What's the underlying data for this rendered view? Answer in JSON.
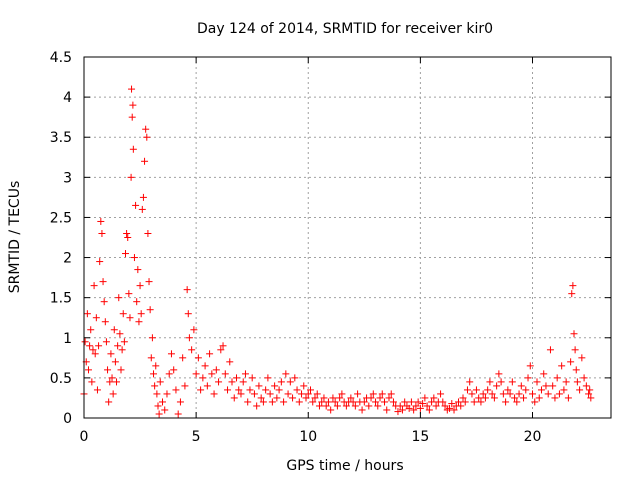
{
  "chart_data": {
    "type": "scatter",
    "title": "Day 124 of 2014, SRMTID for receiver kir0",
    "xlabel": "GPS time / hours",
    "ylabel": "SRMTID / TECUs",
    "xlim": [
      0,
      23.5
    ],
    "ylim": [
      0,
      4.5
    ],
    "grid": true,
    "marker": "+",
    "marker_color": "#ff0000",
    "x_ticks": [
      0,
      5,
      10,
      15,
      20
    ],
    "x_tick_labels": [
      "0",
      "5",
      "10",
      "15",
      "20"
    ],
    "y_ticks": [
      0,
      0.5,
      1,
      1.5,
      2,
      2.5,
      3,
      3.5,
      4,
      4.5
    ],
    "y_tick_labels": [
      "0",
      "0.5",
      "1",
      "1.5",
      "2",
      "2.5",
      "3",
      "3.5",
      "4",
      "4.5"
    ],
    "series": [
      {
        "name": "kir0",
        "points": [
          [
            0.0,
            0.3
          ],
          [
            0.05,
            0.95
          ],
          [
            0.1,
            0.7
          ],
          [
            0.15,
            1.3
          ],
          [
            0.2,
            0.6
          ],
          [
            0.25,
            0.9
          ],
          [
            0.3,
            1.1
          ],
          [
            0.35,
            0.45
          ],
          [
            0.4,
            0.85
          ],
          [
            0.45,
            1.65
          ],
          [
            0.5,
            0.8
          ],
          [
            0.55,
            1.25
          ],
          [
            0.6,
            0.35
          ],
          [
            0.65,
            0.9
          ],
          [
            0.7,
            1.95
          ],
          [
            0.75,
            2.45
          ],
          [
            0.8,
            2.3
          ],
          [
            0.85,
            1.7
          ],
          [
            0.9,
            1.45
          ],
          [
            0.95,
            1.2
          ],
          [
            1.0,
            0.95
          ],
          [
            1.05,
            0.6
          ],
          [
            1.1,
            0.2
          ],
          [
            1.15,
            0.45
          ],
          [
            1.2,
            0.8
          ],
          [
            1.25,
            0.5
          ],
          [
            1.3,
            0.3
          ],
          [
            1.35,
            1.1
          ],
          [
            1.4,
            0.7
          ],
          [
            1.45,
            0.45
          ],
          [
            1.5,
            0.9
          ],
          [
            1.55,
            1.5
          ],
          [
            1.6,
            1.05
          ],
          [
            1.65,
            0.6
          ],
          [
            1.7,
            0.85
          ],
          [
            1.75,
            1.3
          ],
          [
            1.8,
            0.95
          ],
          [
            1.85,
            2.05
          ],
          [
            1.9,
            2.3
          ],
          [
            1.95,
            2.25
          ],
          [
            2.0,
            1.55
          ],
          [
            2.05,
            1.25
          ],
          [
            2.1,
            3.0
          ],
          [
            2.12,
            4.1
          ],
          [
            2.15,
            3.75
          ],
          [
            2.18,
            3.9
          ],
          [
            2.2,
            3.35
          ],
          [
            2.25,
            2.0
          ],
          [
            2.3,
            2.65
          ],
          [
            2.35,
            1.45
          ],
          [
            2.4,
            1.85
          ],
          [
            2.45,
            1.2
          ],
          [
            2.5,
            1.65
          ],
          [
            2.55,
            1.3
          ],
          [
            2.6,
            2.6
          ],
          [
            2.65,
            2.75
          ],
          [
            2.7,
            3.2
          ],
          [
            2.75,
            3.6
          ],
          [
            2.8,
            3.5
          ],
          [
            2.85,
            2.3
          ],
          [
            2.9,
            1.7
          ],
          [
            2.95,
            1.35
          ],
          [
            3.0,
            0.75
          ],
          [
            3.05,
            1.0
          ],
          [
            3.1,
            0.55
          ],
          [
            3.15,
            0.4
          ],
          [
            3.2,
            0.65
          ],
          [
            3.25,
            0.3
          ],
          [
            3.3,
            0.15
          ],
          [
            3.35,
            0.05
          ],
          [
            3.4,
            0.45
          ],
          [
            3.5,
            0.2
          ],
          [
            3.6,
            0.1
          ],
          [
            3.7,
            0.3
          ],
          [
            3.8,
            0.55
          ],
          [
            3.9,
            0.8
          ],
          [
            4.0,
            0.6
          ],
          [
            4.1,
            0.35
          ],
          [
            4.2,
            0.05
          ],
          [
            4.3,
            0.2
          ],
          [
            4.4,
            0.75
          ],
          [
            4.5,
            0.4
          ],
          [
            4.6,
            1.6
          ],
          [
            4.65,
            1.3
          ],
          [
            4.7,
            1.0
          ],
          [
            4.8,
            0.85
          ],
          [
            4.9,
            1.1
          ],
          [
            5.0,
            0.55
          ],
          [
            5.1,
            0.75
          ],
          [
            5.2,
            0.35
          ],
          [
            5.3,
            0.5
          ],
          [
            5.4,
            0.65
          ],
          [
            5.5,
            0.4
          ],
          [
            5.6,
            0.8
          ],
          [
            5.7,
            0.55
          ],
          [
            5.8,
            0.3
          ],
          [
            5.9,
            0.6
          ],
          [
            6.0,
            0.45
          ],
          [
            6.1,
            0.85
          ],
          [
            6.2,
            0.9
          ],
          [
            6.3,
            0.55
          ],
          [
            6.4,
            0.35
          ],
          [
            6.5,
            0.7
          ],
          [
            6.6,
            0.45
          ],
          [
            6.7,
            0.25
          ],
          [
            6.8,
            0.5
          ],
          [
            6.9,
            0.35
          ],
          [
            7.0,
            0.3
          ],
          [
            7.1,
            0.45
          ],
          [
            7.2,
            0.55
          ],
          [
            7.3,
            0.2
          ],
          [
            7.4,
            0.35
          ],
          [
            7.5,
            0.5
          ],
          [
            7.6,
            0.3
          ],
          [
            7.7,
            0.15
          ],
          [
            7.8,
            0.4
          ],
          [
            7.9,
            0.25
          ],
          [
            8.0,
            0.2
          ],
          [
            8.1,
            0.35
          ],
          [
            8.2,
            0.5
          ],
          [
            8.3,
            0.3
          ],
          [
            8.4,
            0.2
          ],
          [
            8.5,
            0.4
          ],
          [
            8.6,
            0.25
          ],
          [
            8.7,
            0.35
          ],
          [
            8.8,
            0.45
          ],
          [
            8.9,
            0.2
          ],
          [
            9.0,
            0.55
          ],
          [
            9.1,
            0.3
          ],
          [
            9.2,
            0.45
          ],
          [
            9.3,
            0.25
          ],
          [
            9.4,
            0.5
          ],
          [
            9.5,
            0.35
          ],
          [
            9.6,
            0.2
          ],
          [
            9.7,
            0.3
          ],
          [
            9.8,
            0.4
          ],
          [
            9.9,
            0.25
          ],
          [
            10.0,
            0.3
          ],
          [
            10.1,
            0.35
          ],
          [
            10.2,
            0.2
          ],
          [
            10.3,
            0.25
          ],
          [
            10.4,
            0.3
          ],
          [
            10.5,
            0.15
          ],
          [
            10.6,
            0.2
          ],
          [
            10.7,
            0.25
          ],
          [
            10.8,
            0.15
          ],
          [
            10.9,
            0.2
          ],
          [
            11.0,
            0.1
          ],
          [
            11.1,
            0.25
          ],
          [
            11.2,
            0.2
          ],
          [
            11.3,
            0.15
          ],
          [
            11.4,
            0.25
          ],
          [
            11.5,
            0.3
          ],
          [
            11.6,
            0.2
          ],
          [
            11.7,
            0.15
          ],
          [
            11.8,
            0.2
          ],
          [
            11.9,
            0.25
          ],
          [
            12.0,
            0.2
          ],
          [
            12.1,
            0.15
          ],
          [
            12.2,
            0.3
          ],
          [
            12.3,
            0.2
          ],
          [
            12.4,
            0.1
          ],
          [
            12.5,
            0.2
          ],
          [
            12.6,
            0.25
          ],
          [
            12.7,
            0.15
          ],
          [
            12.8,
            0.25
          ],
          [
            12.9,
            0.3
          ],
          [
            13.0,
            0.2
          ],
          [
            13.1,
            0.15
          ],
          [
            13.2,
            0.25
          ],
          [
            13.3,
            0.3
          ],
          [
            13.4,
            0.2
          ],
          [
            13.5,
            0.1
          ],
          [
            13.6,
            0.25
          ],
          [
            13.7,
            0.3
          ],
          [
            13.8,
            0.2
          ],
          [
            13.9,
            0.15
          ],
          [
            14.0,
            0.08
          ],
          [
            14.1,
            0.15
          ],
          [
            14.2,
            0.1
          ],
          [
            14.3,
            0.2
          ],
          [
            14.4,
            0.15
          ],
          [
            14.5,
            0.12
          ],
          [
            14.6,
            0.2
          ],
          [
            14.7,
            0.1
          ],
          [
            14.8,
            0.15
          ],
          [
            14.9,
            0.2
          ],
          [
            15.0,
            0.12
          ],
          [
            15.1,
            0.18
          ],
          [
            15.2,
            0.25
          ],
          [
            15.3,
            0.15
          ],
          [
            15.4,
            0.1
          ],
          [
            15.5,
            0.2
          ],
          [
            15.6,
            0.25
          ],
          [
            15.7,
            0.15
          ],
          [
            15.8,
            0.2
          ],
          [
            15.9,
            0.3
          ],
          [
            16.0,
            0.2
          ],
          [
            16.1,
            0.15
          ],
          [
            16.2,
            0.1
          ],
          [
            16.3,
            0.12
          ],
          [
            16.4,
            0.18
          ],
          [
            16.5,
            0.1
          ],
          [
            16.6,
            0.15
          ],
          [
            16.7,
            0.2
          ],
          [
            16.8,
            0.15
          ],
          [
            16.9,
            0.25
          ],
          [
            17.0,
            0.2
          ],
          [
            17.1,
            0.35
          ],
          [
            17.2,
            0.45
          ],
          [
            17.3,
            0.3
          ],
          [
            17.4,
            0.2
          ],
          [
            17.5,
            0.35
          ],
          [
            17.6,
            0.25
          ],
          [
            17.7,
            0.2
          ],
          [
            17.8,
            0.3
          ],
          [
            17.9,
            0.25
          ],
          [
            18.0,
            0.35
          ],
          [
            18.1,
            0.45
          ],
          [
            18.2,
            0.3
          ],
          [
            18.3,
            0.25
          ],
          [
            18.4,
            0.4
          ],
          [
            18.5,
            0.55
          ],
          [
            18.6,
            0.45
          ],
          [
            18.7,
            0.3
          ],
          [
            18.8,
            0.2
          ],
          [
            18.9,
            0.35
          ],
          [
            19.0,
            0.3
          ],
          [
            19.1,
            0.45
          ],
          [
            19.2,
            0.25
          ],
          [
            19.3,
            0.2
          ],
          [
            19.4,
            0.3
          ],
          [
            19.5,
            0.4
          ],
          [
            19.6,
            0.25
          ],
          [
            19.7,
            0.35
          ],
          [
            19.8,
            0.5
          ],
          [
            19.9,
            0.65
          ],
          [
            20.0,
            0.3
          ],
          [
            20.1,
            0.2
          ],
          [
            20.2,
            0.45
          ],
          [
            20.3,
            0.25
          ],
          [
            20.4,
            0.35
          ],
          [
            20.5,
            0.55
          ],
          [
            20.6,
            0.4
          ],
          [
            20.7,
            0.3
          ],
          [
            20.8,
            0.85
          ],
          [
            20.9,
            0.4
          ],
          [
            21.0,
            0.25
          ],
          [
            21.1,
            0.5
          ],
          [
            21.2,
            0.3
          ],
          [
            21.3,
            0.65
          ],
          [
            21.4,
            0.35
          ],
          [
            21.5,
            0.45
          ],
          [
            21.6,
            0.25
          ],
          [
            21.7,
            0.7
          ],
          [
            21.75,
            1.55
          ],
          [
            21.8,
            1.65
          ],
          [
            21.85,
            1.05
          ],
          [
            21.9,
            0.85
          ],
          [
            21.95,
            0.6
          ],
          [
            22.0,
            0.45
          ],
          [
            22.1,
            0.35
          ],
          [
            22.2,
            0.75
          ],
          [
            22.3,
            0.5
          ],
          [
            22.4,
            0.4
          ],
          [
            22.5,
            0.3
          ],
          [
            22.55,
            0.35
          ],
          [
            22.6,
            0.25
          ]
        ]
      }
    ]
  }
}
